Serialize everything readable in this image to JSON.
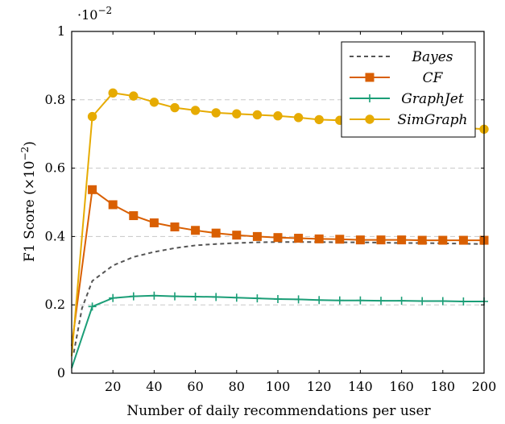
{
  "chart_data": {
    "type": "line",
    "xlabel": "Number of daily recommendations per user",
    "ylabel_main": "F1 Score (×10",
    "ylabel_exp": "−2",
    "ylabel_close": ")",
    "axis_scale_base": "·10",
    "axis_scale_exp": "−2",
    "xlim": [
      0,
      200
    ],
    "ylim": [
      0,
      1
    ],
    "xticks": [
      20,
      40,
      60,
      80,
      100,
      120,
      140,
      160,
      180,
      200
    ],
    "yticks": [
      0,
      0.2,
      0.4,
      0.6,
      0.8,
      1
    ],
    "ytick_labels": [
      "0",
      "0.2",
      "0.4",
      "0.6",
      "0.8",
      "1"
    ],
    "grid": "horizontal-dashed",
    "legend_position": "top-right",
    "series": [
      {
        "name": "Bayes",
        "color": "#555555",
        "style": "dashed",
        "marker": "none",
        "x": [
          1,
          5,
          10,
          20,
          30,
          40,
          50,
          60,
          70,
          80,
          90,
          100,
          110,
          120,
          130,
          140,
          150,
          160,
          170,
          180,
          190,
          200
        ],
        "values": [
          0.06,
          0.19,
          0.27,
          0.315,
          0.34,
          0.355,
          0.366,
          0.374,
          0.378,
          0.381,
          0.383,
          0.384,
          0.384,
          0.384,
          0.383,
          0.383,
          0.382,
          0.381,
          0.381,
          0.38,
          0.379,
          0.378
        ]
      },
      {
        "name": "CF",
        "color": "#d95f02",
        "style": "solid",
        "marker": "square",
        "x": [
          0,
          10,
          20,
          30,
          40,
          50,
          60,
          70,
          80,
          90,
          100,
          110,
          120,
          130,
          140,
          150,
          160,
          170,
          180,
          190,
          200
        ],
        "values": [
          0.08,
          0.537,
          0.493,
          0.461,
          0.44,
          0.428,
          0.418,
          0.41,
          0.404,
          0.4,
          0.397,
          0.395,
          0.393,
          0.392,
          0.39,
          0.39,
          0.39,
          0.389,
          0.389,
          0.389,
          0.389
        ]
      },
      {
        "name": "GraphJet",
        "color": "#1b9e77",
        "style": "solid",
        "marker": "plus",
        "x": [
          0,
          10,
          20,
          30,
          40,
          50,
          60,
          70,
          80,
          90,
          100,
          110,
          120,
          130,
          140,
          150,
          160,
          170,
          180,
          190,
          200
        ],
        "values": [
          0.015,
          0.195,
          0.22,
          0.225,
          0.227,
          0.225,
          0.224,
          0.223,
          0.221,
          0.219,
          0.217,
          0.216,
          0.214,
          0.213,
          0.213,
          0.212,
          0.212,
          0.211,
          0.211,
          0.21,
          0.21
        ]
      },
      {
        "name": "SimGraph",
        "color": "#e6ab02",
        "style": "solid",
        "marker": "circle",
        "x": [
          0,
          10,
          20,
          30,
          40,
          50,
          60,
          70,
          80,
          90,
          100,
          110,
          120,
          130,
          140,
          150,
          160,
          170,
          180,
          190,
          200
        ],
        "values": [
          0.05,
          0.751,
          0.82,
          0.811,
          0.793,
          0.777,
          0.769,
          0.762,
          0.759,
          0.756,
          0.753,
          0.748,
          0.742,
          0.74,
          0.737,
          0.734,
          0.73,
          0.726,
          0.722,
          0.718,
          0.714
        ]
      }
    ]
  }
}
